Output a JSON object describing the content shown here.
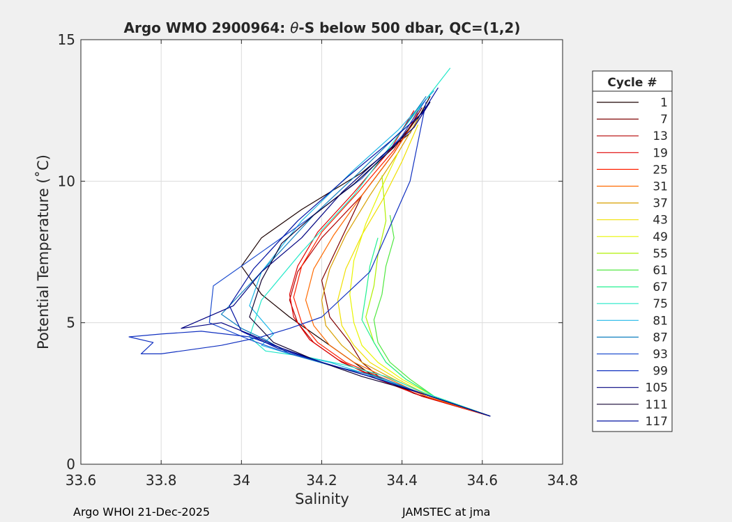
{
  "chart_data": {
    "type": "line",
    "title_prefix": "Argo WMO 2900964: ",
    "title_symbol": "θ",
    "title_suffix": "-S below 500 dbar,  QC=(1,2)",
    "xlabel": "Salinity",
    "ylabel": "Potential Temperature (˚C)",
    "xlim": [
      33.6,
      34.8
    ],
    "ylim": [
      0,
      15
    ],
    "xticks": [
      33.6,
      33.8,
      34.0,
      34.2,
      34.4,
      34.6,
      34.8
    ],
    "xtick_labels": [
      "33.6",
      "33.8",
      "34",
      "34.2",
      "34.4",
      "34.6",
      "34.8"
    ],
    "yticks": [
      0,
      5,
      10,
      15
    ],
    "ytick_labels": [
      "0",
      "5",
      "10",
      "15"
    ],
    "grid": true,
    "legend": {
      "title": "Cycle #",
      "placement": "right",
      "entries": [
        {
          "label": "1",
          "color": "#1a0000"
        },
        {
          "label": "7",
          "color": "#7f0000"
        },
        {
          "label": "13",
          "color": "#b40000"
        },
        {
          "label": "19",
          "color": "#e00000"
        },
        {
          "label": "25",
          "color": "#ff2000"
        },
        {
          "label": "31",
          "color": "#ff6a00"
        },
        {
          "label": "37",
          "color": "#d8a000"
        },
        {
          "label": "43",
          "color": "#f0e000"
        },
        {
          "label": "49",
          "color": "#e8f500"
        },
        {
          "label": "55",
          "color": "#b0f000"
        },
        {
          "label": "61",
          "color": "#50e840"
        },
        {
          "label": "67",
          "color": "#20f090"
        },
        {
          "label": "75",
          "color": "#20e8c8"
        },
        {
          "label": "81",
          "color": "#20b8e8"
        },
        {
          "label": "87",
          "color": "#1080c0"
        },
        {
          "label": "93",
          "color": "#2050d0"
        },
        {
          "label": "99",
          "color": "#1030c0"
        },
        {
          "label": "105",
          "color": "#000080"
        },
        {
          "label": "111",
          "color": "#100030"
        },
        {
          "label": "117",
          "color": "#0010a0"
        }
      ]
    },
    "series": [
      {
        "color": "#1a0000",
        "x": [
          34.62,
          34.43,
          34.32,
          34.25,
          34.18,
          34.12,
          34.05,
          34.0,
          34.05,
          34.15,
          34.3,
          34.42,
          34.47
        ],
        "y": [
          1.7,
          2.5,
          3.2,
          3.9,
          4.6,
          5.2,
          6.0,
          7.0,
          8.0,
          9.0,
          10.3,
          11.7,
          13.0
        ]
      },
      {
        "color": "#7f0000",
        "x": [
          34.62,
          34.45,
          34.35,
          34.3,
          34.27,
          34.22,
          34.2,
          34.25,
          34.3,
          34.38,
          34.45
        ],
        "y": [
          1.7,
          2.4,
          3.0,
          3.6,
          4.3,
          5.2,
          6.5,
          8.0,
          9.5,
          11.0,
          12.6
        ]
      },
      {
        "color": "#b40000",
        "x": [
          34.62,
          34.45,
          34.35,
          34.25,
          34.18,
          34.14,
          34.12,
          34.14,
          34.2,
          34.3,
          34.38,
          34.44
        ],
        "y": [
          1.7,
          2.4,
          3.0,
          3.6,
          4.3,
          5.0,
          5.8,
          6.8,
          8.0,
          9.5,
          11.0,
          12.4
        ]
      },
      {
        "color": "#e00000",
        "x": [
          34.62,
          34.45,
          34.34,
          34.24,
          34.17,
          34.13,
          34.12,
          34.14,
          34.19,
          34.28,
          34.37,
          34.43
        ],
        "y": [
          1.7,
          2.4,
          3.0,
          3.7,
          4.4,
          5.2,
          6.0,
          7.0,
          8.2,
          9.6,
          11.1,
          12.5
        ]
      },
      {
        "color": "#ff2000",
        "x": [
          34.62,
          34.46,
          34.36,
          34.26,
          34.19,
          34.15,
          34.13,
          34.15,
          34.2,
          34.29,
          34.38,
          34.44
        ],
        "y": [
          1.7,
          2.4,
          3.0,
          3.6,
          4.3,
          5.0,
          5.9,
          7.0,
          8.2,
          9.6,
          11.1,
          12.5
        ]
      },
      {
        "color": "#ff6a00",
        "x": [
          34.62,
          34.46,
          34.37,
          34.28,
          34.22,
          34.18,
          34.16,
          34.18,
          34.23,
          34.3,
          34.38,
          34.44
        ],
        "y": [
          1.7,
          2.4,
          3.0,
          3.6,
          4.2,
          4.9,
          5.8,
          6.9,
          8.1,
          9.5,
          11.0,
          12.3
        ]
      },
      {
        "color": "#d8a000",
        "x": [
          34.62,
          34.47,
          34.38,
          34.3,
          34.25,
          34.21,
          34.2,
          34.22,
          34.26,
          34.32,
          34.39,
          34.44
        ],
        "y": [
          1.7,
          2.4,
          3.0,
          3.6,
          4.2,
          4.9,
          5.8,
          6.9,
          8.1,
          9.5,
          11.0,
          12.2
        ]
      },
      {
        "color": "#f0e000",
        "x": [
          34.62,
          34.47,
          34.39,
          34.32,
          34.28,
          34.25,
          34.24,
          34.26,
          34.3,
          34.35,
          34.4,
          34.44
        ],
        "y": [
          1.7,
          2.4,
          3.0,
          3.6,
          4.2,
          4.9,
          5.8,
          6.9,
          8.1,
          9.3,
          10.7,
          12.0
        ]
      },
      {
        "color": "#e8f500",
        "x": [
          34.62,
          34.48,
          34.4,
          34.34,
          34.3,
          34.28,
          34.27,
          34.28,
          34.31,
          34.35,
          34.39
        ],
        "y": [
          1.7,
          2.4,
          3.0,
          3.6,
          4.2,
          5.0,
          6.0,
          7.2,
          8.5,
          9.8,
          11.0
        ]
      },
      {
        "color": "#b0f000",
        "x": [
          34.62,
          34.48,
          34.41,
          34.36,
          34.33,
          34.31,
          34.33,
          34.34,
          34.36,
          34.35
        ],
        "y": [
          1.7,
          2.4,
          3.0,
          3.6,
          4.3,
          5.2,
          6.3,
          7.4,
          8.6,
          10.2
        ]
      },
      {
        "color": "#50e840",
        "x": [
          34.62,
          34.48,
          34.42,
          34.37,
          34.34,
          34.33,
          34.35,
          34.36,
          34.38,
          34.37
        ],
        "y": [
          1.7,
          2.4,
          3.0,
          3.6,
          4.3,
          5.1,
          6.0,
          7.0,
          8.0,
          8.8
        ]
      },
      {
        "color": "#20f090",
        "x": [
          34.62,
          34.48,
          34.41,
          34.36,
          34.33,
          34.3,
          34.31,
          34.32,
          34.34
        ],
        "y": [
          1.7,
          2.4,
          3.0,
          3.6,
          4.3,
          5.1,
          6.0,
          7.0,
          8.0
        ]
      },
      {
        "color": "#20e8c8",
        "x": [
          34.62,
          34.46,
          34.36,
          34.26,
          34.16,
          34.06,
          34.02,
          34.05,
          34.15,
          34.28,
          34.4,
          34.52
        ],
        "y": [
          1.7,
          2.5,
          3.1,
          3.5,
          3.8,
          4.0,
          4.5,
          5.8,
          7.5,
          9.5,
          11.8,
          14.0
        ]
      },
      {
        "color": "#20b8e8",
        "x": [
          34.62,
          34.45,
          34.33,
          34.22,
          34.12,
          34.05,
          34.08,
          34.02,
          34.05,
          34.15,
          34.28,
          34.39,
          34.48
        ],
        "y": [
          1.7,
          2.5,
          3.1,
          3.6,
          3.9,
          4.2,
          4.6,
          5.6,
          6.8,
          8.6,
          10.4,
          11.8,
          13.2
        ]
      },
      {
        "color": "#1080c0",
        "x": [
          34.62,
          34.45,
          34.34,
          34.22,
          34.12,
          34.06,
          34.0,
          33.95,
          34.05,
          34.18,
          34.3,
          34.4,
          34.46
        ],
        "y": [
          1.7,
          2.5,
          3.1,
          3.5,
          3.9,
          4.4,
          4.8,
          5.3,
          6.8,
          8.8,
          10.4,
          11.8,
          13.0
        ]
      },
      {
        "color": "#2050d0",
        "x": [
          34.62,
          34.45,
          34.32,
          34.2,
          34.1,
          34.02,
          33.92,
          33.93,
          34.02,
          34.16,
          34.3,
          34.4,
          34.46
        ],
        "y": [
          1.7,
          2.5,
          3.1,
          3.6,
          4.0,
          4.4,
          5.0,
          6.3,
          7.2,
          8.6,
          10.1,
          11.6,
          12.9
        ]
      },
      {
        "color": "#1030c0",
        "x": [
          34.62,
          34.45,
          34.32,
          34.2,
          34.1,
          34.02,
          33.9,
          33.8,
          33.72,
          33.78,
          33.75,
          33.8,
          33.95,
          34.05,
          34.12,
          34.2,
          34.32,
          34.42,
          34.46
        ],
        "y": [
          1.7,
          2.5,
          3.1,
          3.6,
          4.1,
          4.5,
          4.7,
          4.6,
          4.5,
          4.3,
          3.9,
          3.9,
          4.2,
          4.5,
          4.8,
          5.2,
          6.8,
          10.0,
          12.8
        ]
      },
      {
        "color": "#000080",
        "x": [
          34.62,
          34.45,
          34.32,
          34.2,
          34.1,
          34.02,
          33.95,
          33.85,
          33.98,
          34.05,
          34.15,
          34.25,
          34.35,
          34.43,
          34.47
        ],
        "y": [
          1.7,
          2.5,
          3.1,
          3.6,
          4.1,
          4.6,
          5.0,
          4.8,
          5.6,
          6.8,
          8.0,
          9.6,
          10.9,
          11.9,
          12.8
        ]
      },
      {
        "color": "#100030",
        "x": [
          34.62,
          34.45,
          34.3,
          34.18,
          34.08,
          34.02,
          34.05,
          34.1,
          34.18,
          34.28,
          34.38,
          34.47
        ],
        "y": [
          1.7,
          2.5,
          3.1,
          3.7,
          4.3,
          5.2,
          6.5,
          7.8,
          8.8,
          9.9,
          11.2,
          12.8
        ]
      },
      {
        "color": "#0010a0",
        "x": [
          34.62,
          34.45,
          34.32,
          34.2,
          34.09,
          34.0,
          33.97,
          34.03,
          34.14,
          34.26,
          34.37,
          34.45,
          34.49
        ],
        "y": [
          1.7,
          2.5,
          3.1,
          3.6,
          4.1,
          4.7,
          5.6,
          6.9,
          8.6,
          10.1,
          11.4,
          12.4,
          13.3
        ]
      }
    ]
  },
  "footer": {
    "left": "Argo WHOI 21-Dec-2025",
    "right": "JAMSTEC at jma"
  }
}
